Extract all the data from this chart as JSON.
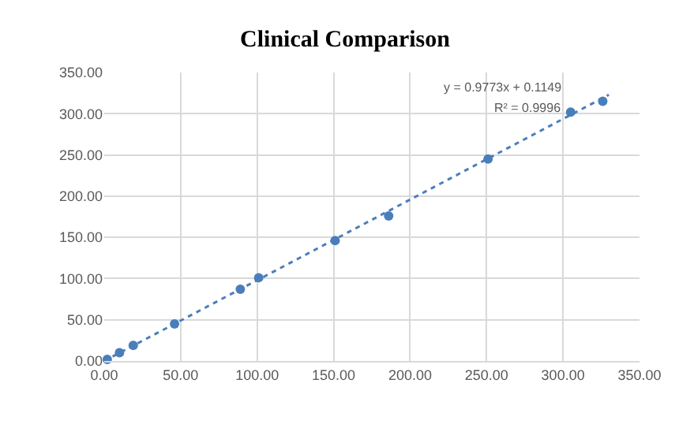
{
  "chart_data": {
    "type": "scatter",
    "title": "Clinical Comparison",
    "series": [
      {
        "color": "#4a7ebb",
        "x": [
          2,
          10,
          19,
          46,
          89,
          101,
          151,
          186,
          251,
          305,
          326
        ],
        "values": [
          2,
          10,
          19,
          45,
          87,
          101,
          146,
          176,
          245,
          302,
          315
        ]
      },
      {
        "type": "line",
        "color": "#4a7ebb",
        "line_style": "dotted",
        "x": [
          0,
          330
        ],
        "values": [
          0,
          323
        ]
      }
    ],
    "annotations": [
      "y = 0.9773x + 0.1149",
      "R² = 0.9996"
    ],
    "xlim": [
      0,
      350
    ],
    "ylim": [
      0,
      350
    ],
    "xticks": [
      {
        "value": 0,
        "label": "0.00"
      },
      {
        "value": 50,
        "label": "50.00"
      },
      {
        "value": 100,
        "label": "100.00"
      },
      {
        "value": 150,
        "label": "150.00"
      },
      {
        "value": 200,
        "label": "200.00"
      },
      {
        "value": 250,
        "label": "250.00"
      },
      {
        "value": 300,
        "label": "300.00"
      },
      {
        "value": 350,
        "label": "350.00"
      }
    ],
    "yticks": [
      {
        "value": 0,
        "label": "0.00"
      },
      {
        "value": 50,
        "label": "50.00"
      },
      {
        "value": 100,
        "label": "100.00"
      },
      {
        "value": 150,
        "label": "150.00"
      },
      {
        "value": 200,
        "label": "200.00"
      },
      {
        "value": 250,
        "label": "250.00"
      },
      {
        "value": 300,
        "label": "300.00"
      },
      {
        "value": 350,
        "label": "350.00"
      }
    ],
    "grid": true
  }
}
